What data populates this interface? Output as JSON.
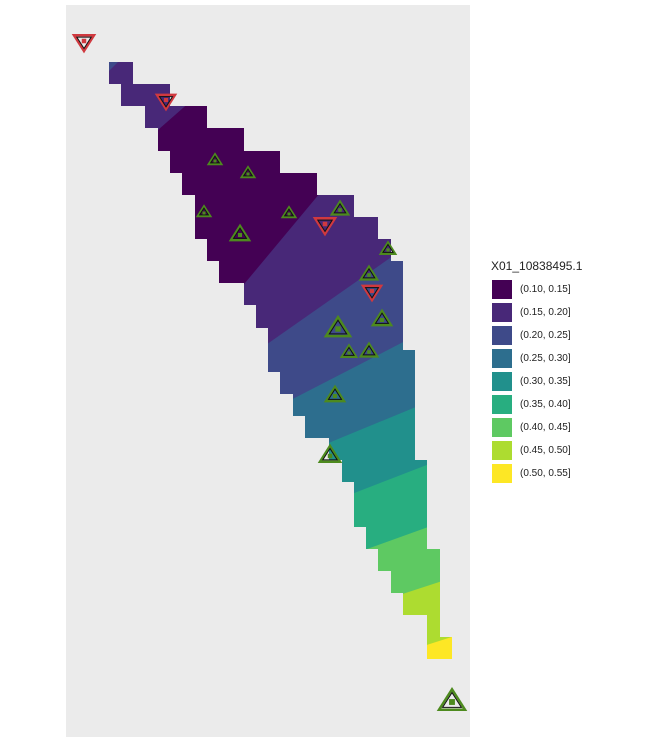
{
  "legend": {
    "title": "X01_10838495.1",
    "items": [
      {
        "label": "(0.10, 0.15]",
        "color": "#440154"
      },
      {
        "label": "(0.15, 0.20]",
        "color": "#482878"
      },
      {
        "label": "(0.20, 0.25]",
        "color": "#3e4a89"
      },
      {
        "label": "(0.25, 0.30]",
        "color": "#2d6e8e"
      },
      {
        "label": "(0.30, 0.35]",
        "color": "#21908c"
      },
      {
        "label": "(0.35, 0.40]",
        "color": "#28ae80"
      },
      {
        "label": "(0.40, 0.45]",
        "color": "#5ec962"
      },
      {
        "label": "(0.45, 0.50]",
        "color": "#addc30"
      },
      {
        "label": "(0.50, 0.55]",
        "color": "#fde725"
      }
    ]
  },
  "panel_background": "#ebebeb",
  "markers": {
    "up_triangle": {
      "shape": "triangle-up",
      "color": "#4d8a1e"
    },
    "down_triangle": {
      "shape": "triangle-down",
      "color": "#d0393f"
    }
  }
}
